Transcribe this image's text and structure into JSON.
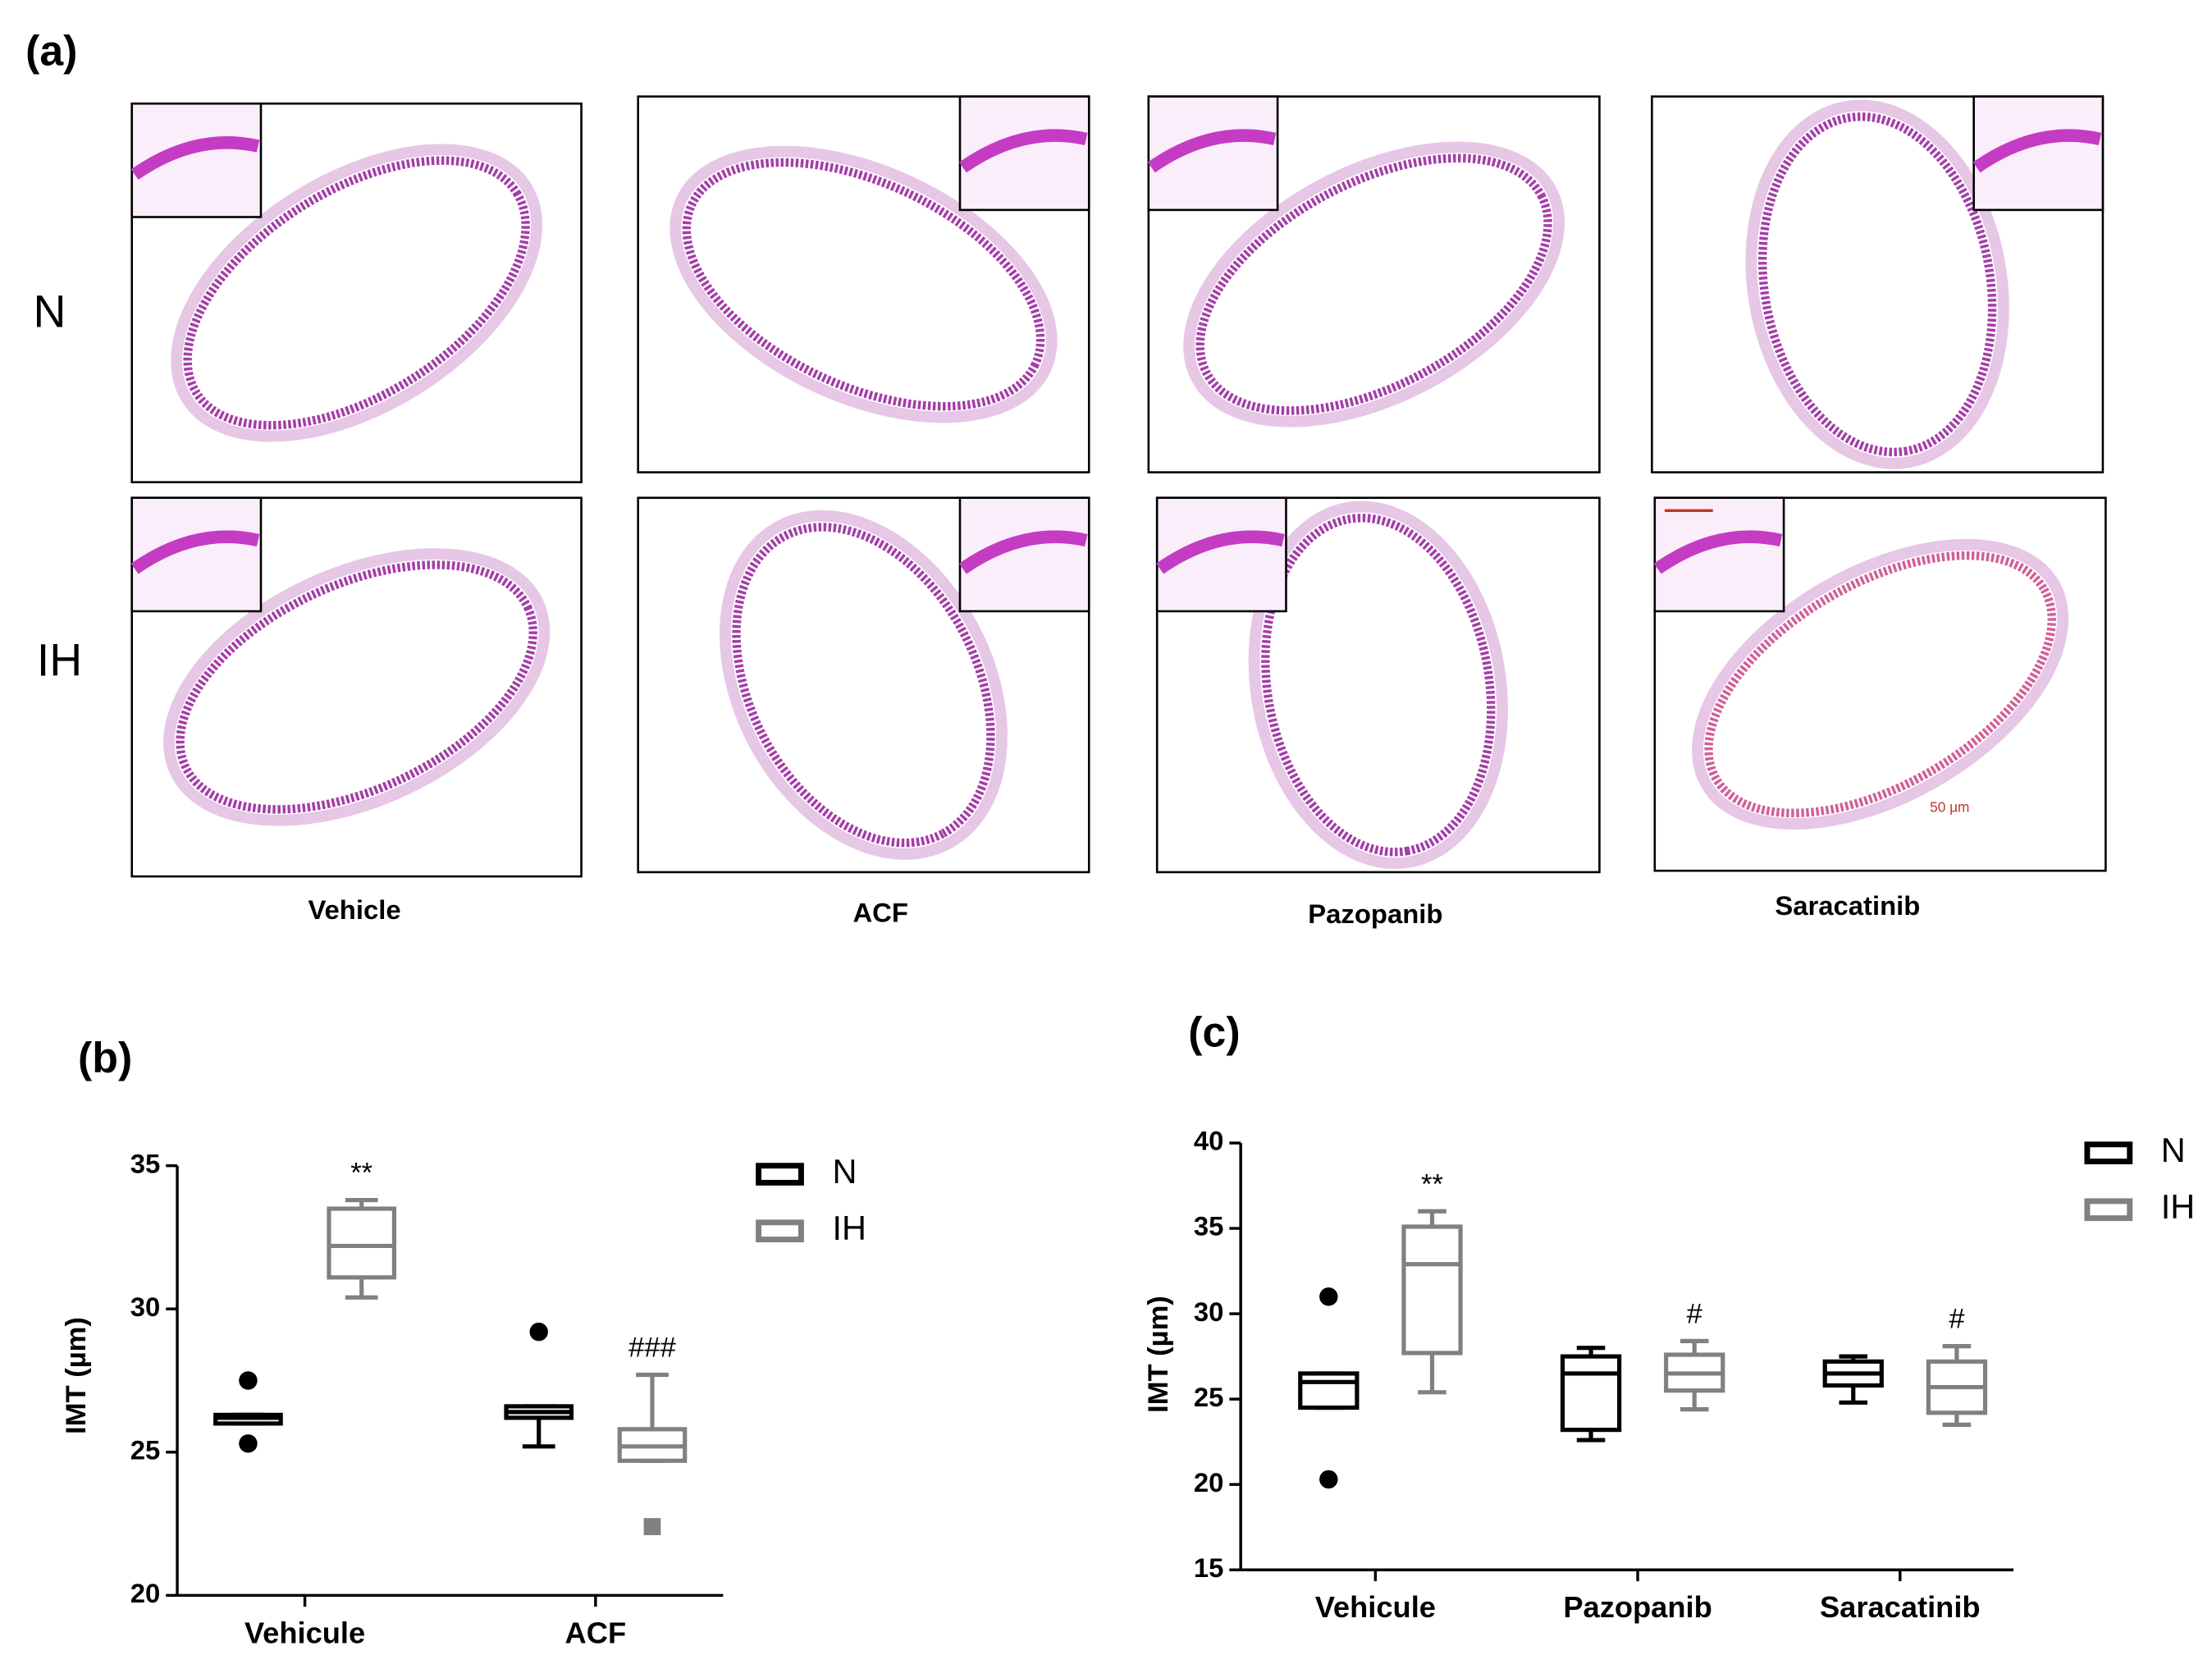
{
  "panel_a": {
    "label": "(a)",
    "rows": [
      "N",
      "IH"
    ],
    "columns": [
      "Vehicle",
      "ACF",
      "Pazopanib",
      "Saracatinib"
    ],
    "scale_bar": "50 µm"
  },
  "chart_data": [
    {
      "type": "box",
      "panel": "(b)",
      "ylabel": "IMT (µm)",
      "categories": [
        "Vehicule",
        "ACF"
      ],
      "ylim": [
        20,
        35
      ],
      "yticks": [
        20,
        25,
        30,
        35
      ],
      "legend": "right",
      "series": [
        {
          "name": "N",
          "color": "#000000",
          "annotations": [
            null,
            null
          ],
          "boxes": [
            {
              "min": 26.0,
              "q1": 26.0,
              "median": 26.2,
              "q3": 26.3,
              "max": 26.3,
              "outliers": [
                27.5,
                25.3
              ]
            },
            {
              "min": 25.2,
              "q1": 26.2,
              "median": 26.4,
              "q3": 26.6,
              "max": 26.6,
              "outliers": [
                29.2
              ]
            }
          ]
        },
        {
          "name": "IH",
          "color": "#808080",
          "annotations": [
            "**",
            "###"
          ],
          "boxes": [
            {
              "min": 30.4,
              "q1": 31.1,
              "median": 32.2,
              "q3": 33.5,
              "max": 33.8,
              "outliers": []
            },
            {
              "min": 24.7,
              "q1": 24.7,
              "median": 25.2,
              "q3": 25.8,
              "max": 27.7,
              "outliers": [
                22.4
              ]
            }
          ]
        }
      ]
    },
    {
      "type": "box",
      "panel": "(c)",
      "ylabel": "IMT (µm)",
      "categories": [
        "Vehicule",
        "Pazopanib",
        "Saracatinib"
      ],
      "ylim": [
        15,
        40
      ],
      "yticks": [
        15,
        20,
        25,
        30,
        35,
        40
      ],
      "legend": "right",
      "series": [
        {
          "name": "N",
          "color": "#000000",
          "annotations": [
            null,
            null,
            null
          ],
          "boxes": [
            {
              "min": 24.5,
              "q1": 24.5,
              "median": 26.0,
              "q3": 26.5,
              "max": 26.5,
              "outliers": [
                31.0,
                20.3
              ]
            },
            {
              "min": 22.6,
              "q1": 23.2,
              "median": 26.5,
              "q3": 27.5,
              "max": 28.0,
              "outliers": []
            },
            {
              "min": 24.8,
              "q1": 25.8,
              "median": 26.5,
              "q3": 27.2,
              "max": 27.5,
              "outliers": []
            }
          ]
        },
        {
          "name": "IH",
          "color": "#808080",
          "annotations": [
            "**",
            "#",
            "#"
          ],
          "boxes": [
            {
              "min": 25.4,
              "q1": 27.7,
              "median": 32.9,
              "q3": 35.1,
              "max": 36.0,
              "outliers": []
            },
            {
              "min": 24.4,
              "q1": 25.5,
              "median": 26.5,
              "q3": 27.6,
              "max": 28.4,
              "outliers": []
            },
            {
              "min": 23.5,
              "q1": 24.2,
              "median": 25.7,
              "q3": 27.2,
              "max": 28.1,
              "outliers": []
            }
          ]
        }
      ]
    }
  ]
}
